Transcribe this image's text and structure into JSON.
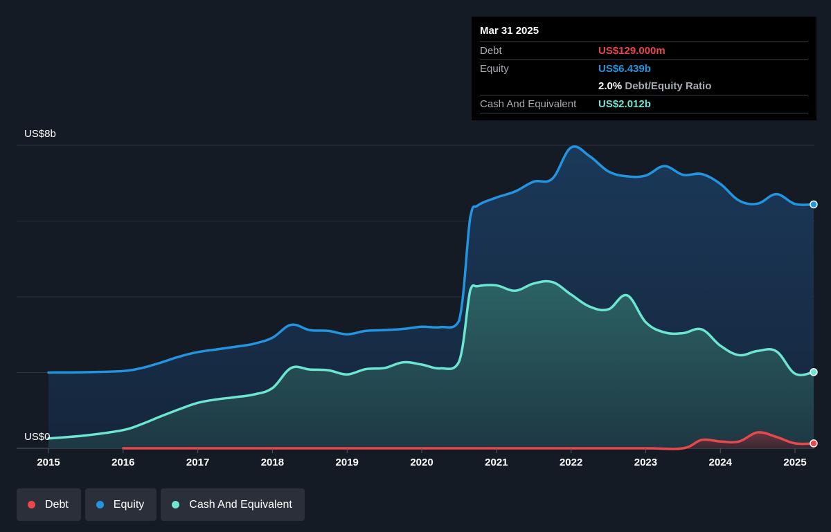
{
  "chart_data": {
    "type": "area",
    "y_top_label": "US$8b",
    "y_bottom_label": "US$0",
    "ylim": [
      0,
      8
    ],
    "xlim": [
      2015,
      2025.25
    ],
    "x_ticks": [
      "2015",
      "2016",
      "2017",
      "2018",
      "2019",
      "2020",
      "2021",
      "2022",
      "2023",
      "2024",
      "2025"
    ],
    "grid": true,
    "series": [
      {
        "name": "Debt",
        "color": "#e8474c",
        "points": [
          [
            2016.0,
            0.0
          ],
          [
            2017.0,
            0.0
          ],
          [
            2018.0,
            0.0
          ],
          [
            2019.0,
            0.0
          ],
          [
            2020.0,
            0.0
          ],
          [
            2021.0,
            0.0
          ],
          [
            2022.0,
            0.0
          ],
          [
            2023.0,
            0.0
          ],
          [
            2023.5,
            0.0
          ],
          [
            2023.75,
            0.22
          ],
          [
            2024.0,
            0.18
          ],
          [
            2024.25,
            0.18
          ],
          [
            2024.5,
            0.42
          ],
          [
            2024.75,
            0.3
          ],
          [
            2025.0,
            0.13
          ],
          [
            2025.25,
            0.129
          ]
        ]
      },
      {
        "name": "Equity",
        "color": "#2394df",
        "points": [
          [
            2015.0,
            2.0
          ],
          [
            2015.5,
            2.01
          ],
          [
            2016.0,
            2.04
          ],
          [
            2016.25,
            2.12
          ],
          [
            2016.5,
            2.26
          ],
          [
            2016.75,
            2.42
          ],
          [
            2017.0,
            2.54
          ],
          [
            2017.25,
            2.61
          ],
          [
            2017.5,
            2.68
          ],
          [
            2017.75,
            2.76
          ],
          [
            2018.0,
            2.92
          ],
          [
            2018.25,
            3.26
          ],
          [
            2018.5,
            3.12
          ],
          [
            2018.75,
            3.1
          ],
          [
            2019.0,
            3.01
          ],
          [
            2019.25,
            3.1
          ],
          [
            2019.5,
            3.12
          ],
          [
            2019.75,
            3.15
          ],
          [
            2020.0,
            3.21
          ],
          [
            2020.25,
            3.2
          ],
          [
            2020.5,
            3.37
          ],
          [
            2020.65,
            6.1
          ],
          [
            2020.75,
            6.41
          ],
          [
            2021.0,
            6.62
          ],
          [
            2021.25,
            6.78
          ],
          [
            2021.5,
            7.04
          ],
          [
            2021.75,
            7.12
          ],
          [
            2022.0,
            7.94
          ],
          [
            2022.25,
            7.71
          ],
          [
            2022.5,
            7.31
          ],
          [
            2022.75,
            7.18
          ],
          [
            2023.0,
            7.2
          ],
          [
            2023.25,
            7.45
          ],
          [
            2023.5,
            7.22
          ],
          [
            2023.75,
            7.24
          ],
          [
            2024.0,
            6.98
          ],
          [
            2024.25,
            6.54
          ],
          [
            2024.5,
            6.46
          ],
          [
            2024.75,
            6.71
          ],
          [
            2025.0,
            6.45
          ],
          [
            2025.25,
            6.439
          ]
        ]
      },
      {
        "name": "Cash And Equivalent",
        "color": "#6ce5d1",
        "points": [
          [
            2015.0,
            0.26
          ],
          [
            2015.5,
            0.34
          ],
          [
            2016.0,
            0.48
          ],
          [
            2016.25,
            0.64
          ],
          [
            2016.5,
            0.84
          ],
          [
            2016.75,
            1.03
          ],
          [
            2017.0,
            1.2
          ],
          [
            2017.25,
            1.29
          ],
          [
            2017.5,
            1.35
          ],
          [
            2017.75,
            1.42
          ],
          [
            2018.0,
            1.59
          ],
          [
            2018.25,
            2.12
          ],
          [
            2018.5,
            2.08
          ],
          [
            2018.75,
            2.06
          ],
          [
            2019.0,
            1.95
          ],
          [
            2019.25,
            2.09
          ],
          [
            2019.5,
            2.12
          ],
          [
            2019.75,
            2.27
          ],
          [
            2020.0,
            2.21
          ],
          [
            2020.25,
            2.11
          ],
          [
            2020.5,
            2.29
          ],
          [
            2020.65,
            4.18
          ],
          [
            2020.75,
            4.28
          ],
          [
            2021.0,
            4.3
          ],
          [
            2021.25,
            4.16
          ],
          [
            2021.5,
            4.35
          ],
          [
            2021.75,
            4.39
          ],
          [
            2022.0,
            4.06
          ],
          [
            2022.25,
            3.74
          ],
          [
            2022.5,
            3.67
          ],
          [
            2022.75,
            4.04
          ],
          [
            2023.0,
            3.33
          ],
          [
            2023.25,
            3.06
          ],
          [
            2023.5,
            3.04
          ],
          [
            2023.75,
            3.14
          ],
          [
            2024.0,
            2.71
          ],
          [
            2024.25,
            2.46
          ],
          [
            2024.5,
            2.57
          ],
          [
            2024.75,
            2.56
          ],
          [
            2025.0,
            1.97
          ],
          [
            2025.25,
            2.012
          ]
        ]
      }
    ]
  },
  "tooltip": {
    "date": "Mar 31 2025",
    "debt_label": "Debt",
    "debt_value": "US$129.000m",
    "equity_label": "Equity",
    "equity_value": "US$6.439b",
    "ratio_value": "2.0%",
    "ratio_label": "Debt/Equity Ratio",
    "cash_label": "Cash And Equivalent",
    "cash_value": "US$2.012b",
    "colors": {
      "debt": "#e8474c",
      "equity": "#2394df",
      "cash": "#6ce5d1"
    }
  },
  "legend": {
    "items": [
      {
        "label": "Debt",
        "color": "#e8474c"
      },
      {
        "label": "Equity",
        "color": "#2394df"
      },
      {
        "label": "Cash And Equivalent",
        "color": "#6ce5d1"
      }
    ]
  }
}
